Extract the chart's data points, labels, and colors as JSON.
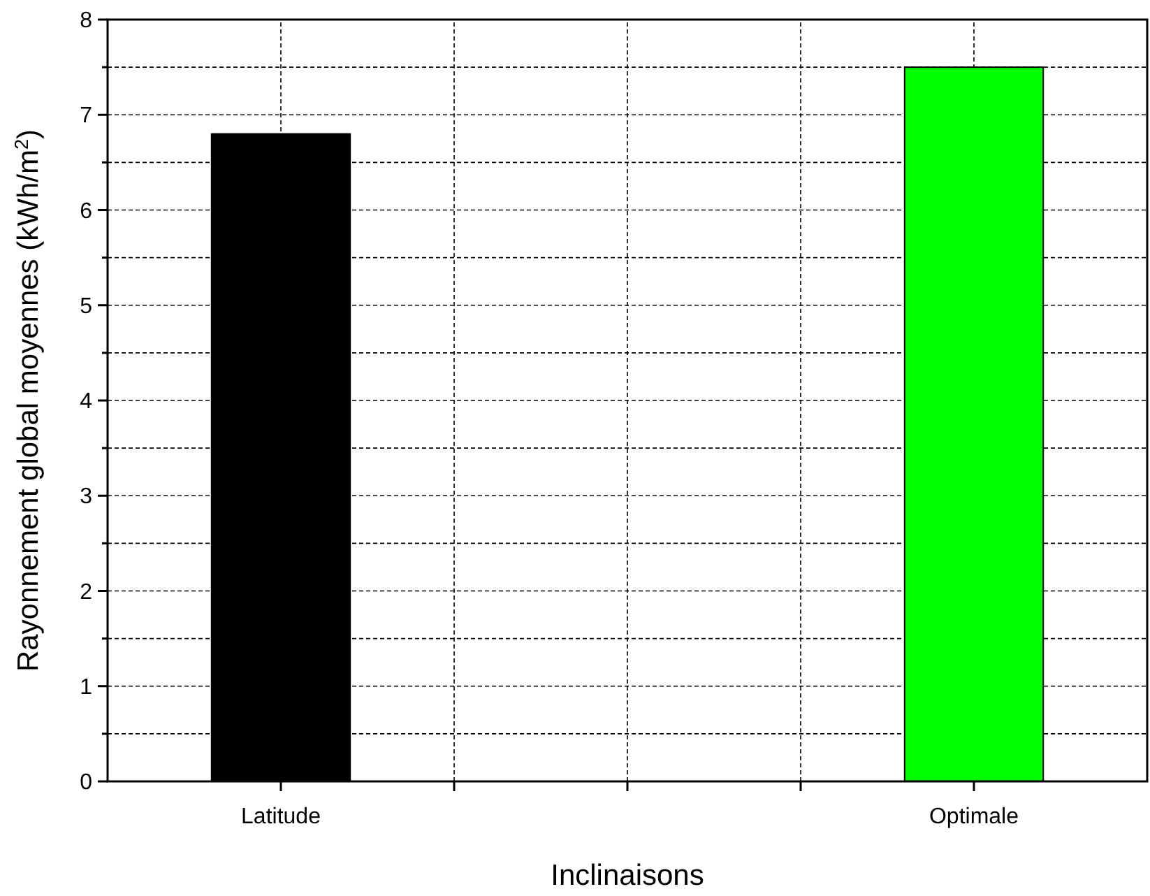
{
  "chart_data": {
    "type": "bar",
    "xlabel": "Inclinaisons",
    "ylabel": "Rayonnement global moyennes (kWh/m$^{2}$)",
    "categories": [
      "Latitude",
      null,
      null,
      null,
      "Optimale"
    ],
    "values": [
      6.8,
      null,
      null,
      null,
      7.5
    ],
    "colors": [
      "#000000",
      null,
      null,
      null,
      "#00ff00"
    ],
    "ylim": [
      0,
      8
    ],
    "yticks": [
      0,
      {
        "value": 0.5,
        "label": null
      },
      1,
      {
        "value": 1.5,
        "label": null
      },
      2,
      {
        "value": 2.5,
        "label": null
      },
      3,
      {
        "value": 3.5,
        "label": null
      },
      4,
      {
        "value": 4.5,
        "label": null
      },
      5,
      {
        "value": 5.5,
        "label": null
      },
      6,
      {
        "value": 6.5,
        "label": null
      },
      7,
      {
        "value": 7.5,
        "label": null
      },
      8
    ],
    "grid": true
  }
}
